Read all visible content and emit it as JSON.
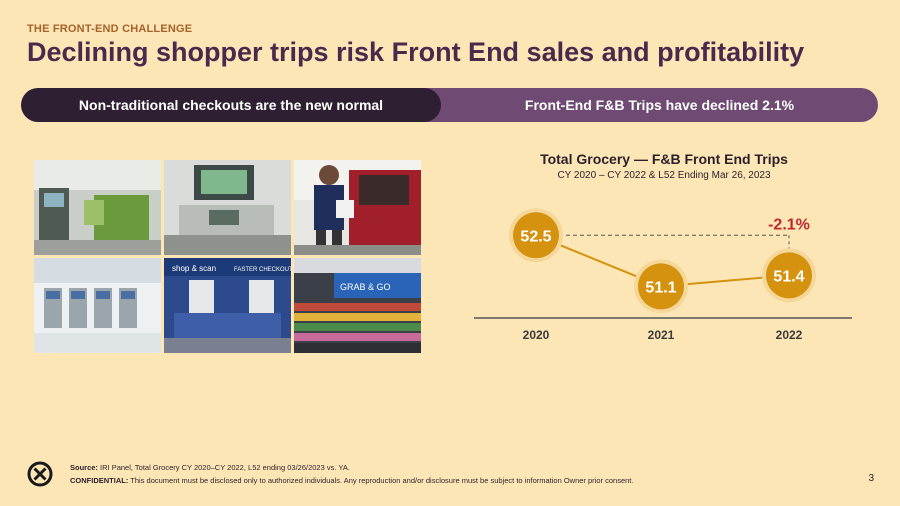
{
  "header": {
    "eyebrow": "THE FRONT-END CHALLENGE",
    "title": "Declining shopper trips risk Front End sales and profitability"
  },
  "banner": {
    "left": "Non-traditional checkouts are the new normal",
    "right": "Front-End F&B Trips have declined 2.1%"
  },
  "photos": [
    {
      "name": "self-checkout-kiosks-photo"
    },
    {
      "name": "self-checkout-scanner-photo"
    },
    {
      "name": "curbside-pickup-photo"
    },
    {
      "name": "self-checkout-aisle-photo"
    },
    {
      "name": "shop-and-scan-checkout-photo"
    },
    {
      "name": "grab-and-go-store-photo"
    }
  ],
  "chart_data": {
    "type": "line",
    "title": "Total Grocery — F&B Front End Trips",
    "subtitle": "CY 2020 – CY 2022 & L52 Ending Mar 26, 2023",
    "categories": [
      "2020",
      "2021",
      "2022"
    ],
    "values": [
      52.5,
      51.1,
      51.4
    ],
    "value_labels": [
      "52.5",
      "51.1",
      "51.4"
    ],
    "annotation": "-2.1%",
    "colors": {
      "marker": "#d4920f",
      "marker_ring": "#f6d79a",
      "line": "#d4920f",
      "annotation": "#c0272d",
      "axis": "#555555"
    }
  },
  "footer": {
    "source_label": "Source:",
    "source_text": " IRI Panel, Total Grocery CY 2020–CY 2022, L52 ending 03/26/2023 vs. YA.",
    "confidential_label": "CONFIDENTIAL:",
    "confidential_text": " This document must be disclosed only to authorized individuals. Any reproduction and/or disclosure must be subject to information Owner prior consent.",
    "page_number": "3"
  }
}
